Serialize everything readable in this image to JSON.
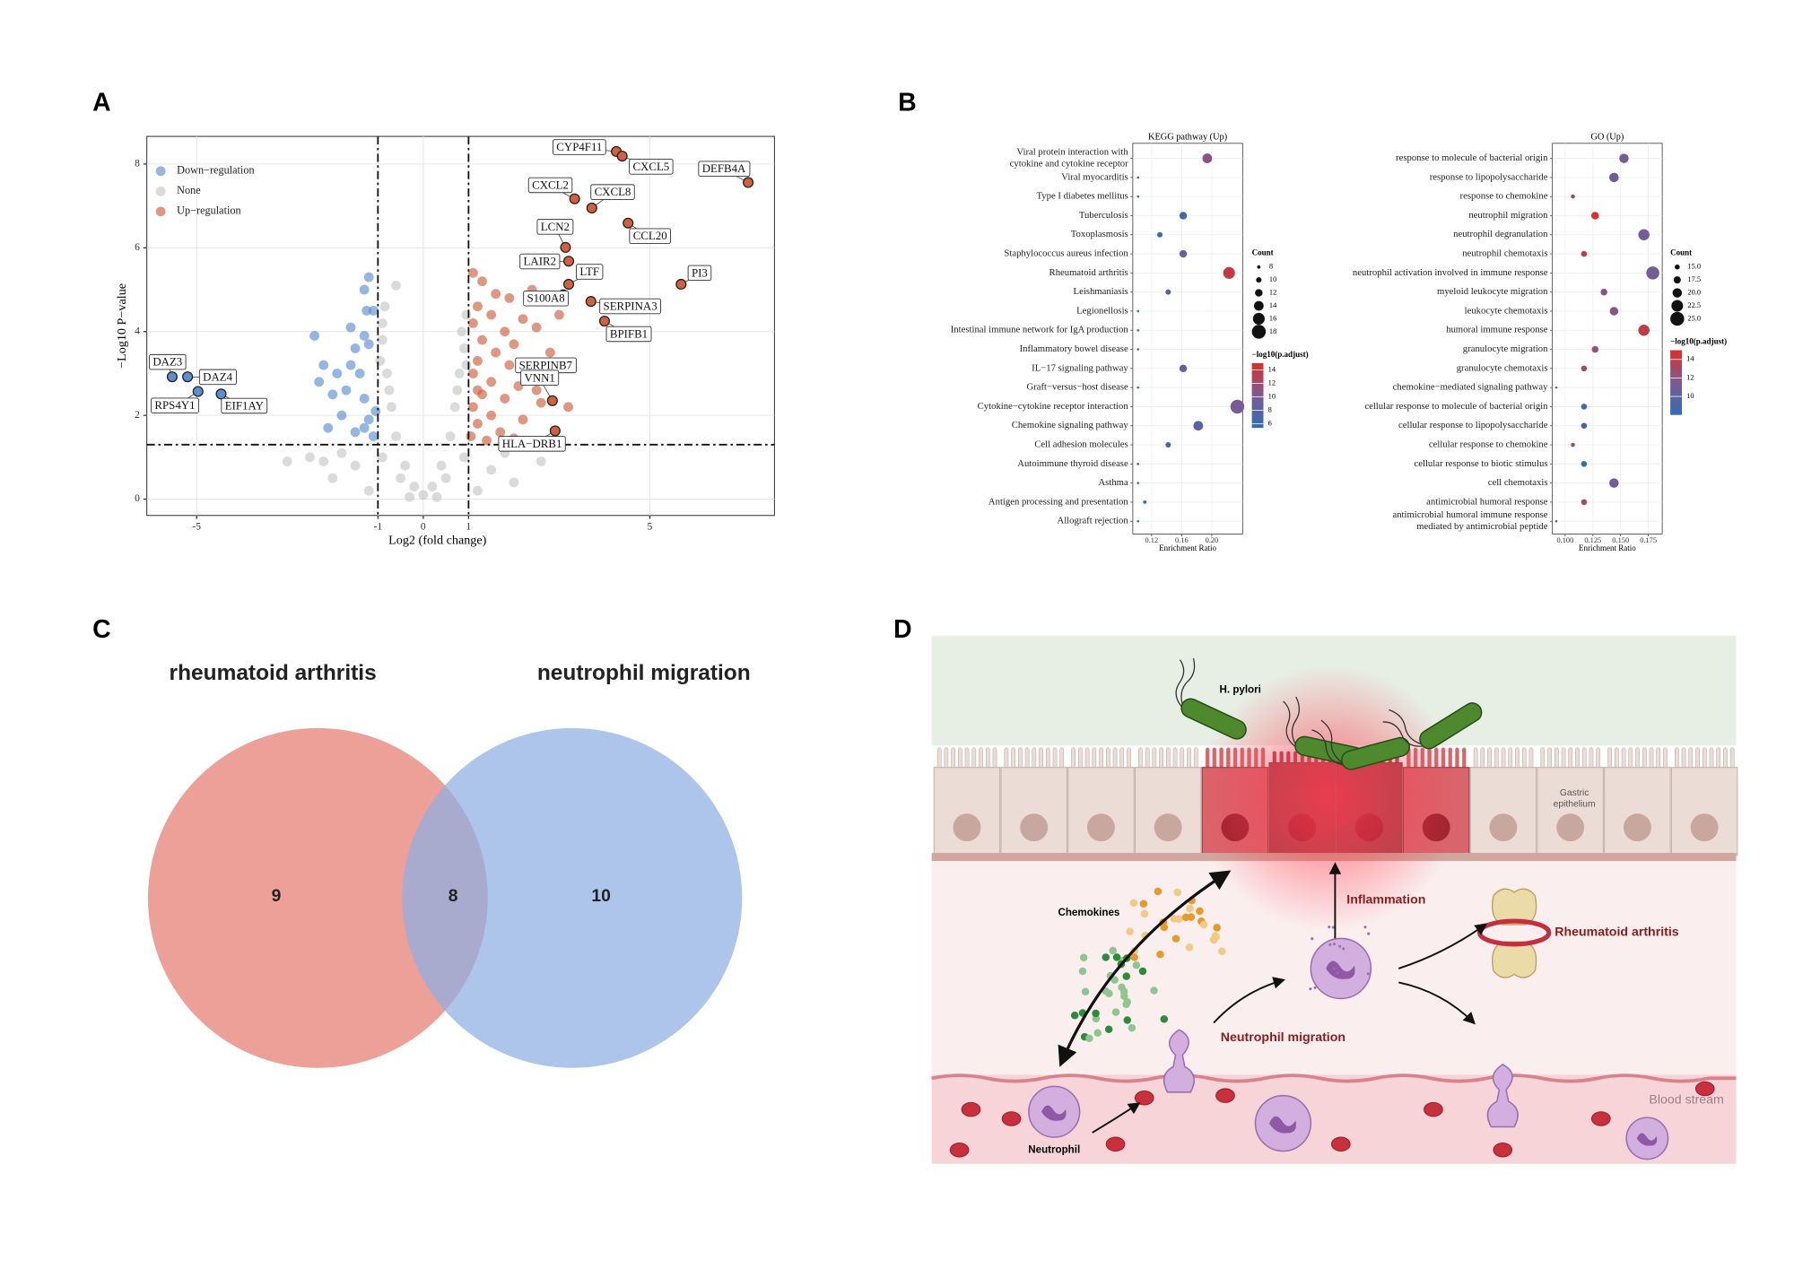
{
  "panel_labels": [
    "A",
    "B",
    "C",
    "D"
  ],
  "chart_data": [
    {
      "type": "scatter",
      "xlabel": "Log2 (fold change)",
      "ylabel": "−Log10 P−value",
      "xlim": [
        -6.1,
        7.75
      ],
      "ylim": [
        -0.39,
        8.66
      ],
      "xticks": [
        -5,
        -1,
        0,
        1,
        5
      ],
      "yticks": [
        0,
        2,
        4,
        6,
        8
      ],
      "grid": true,
      "legend": "top-left",
      "thresholds": {
        "x": [
          -1,
          1
        ],
        "y": 1.3
      },
      "series": [
        {
          "name": "Down−regulation",
          "color": "#5b8fd1",
          "x": [
            -1.2,
            -1.3,
            -1.25,
            -1.1,
            -2.4,
            -1.6,
            -1.3,
            -1.2,
            -1.5,
            -2.2,
            -1.9,
            -1.6,
            -1.4,
            -2.3,
            -2.0,
            -1.7,
            -1.3,
            -1.8,
            -1.2,
            -1.5,
            -1.1,
            -1.3,
            -2.1,
            -1.05
          ],
          "values": [
            5.3,
            5.0,
            4.5,
            4.5,
            3.9,
            4.1,
            3.9,
            3.7,
            3.6,
            3.2,
            3.0,
            3.2,
            3.0,
            2.8,
            2.5,
            2.6,
            2.4,
            2.0,
            1.9,
            1.6,
            1.5,
            1.7,
            1.7,
            2.1
          ]
        },
        {
          "name": "None",
          "color": "#c6c6c6",
          "x": [
            0,
            -0.2,
            0.2,
            -0.4,
            0.4,
            -0.6,
            0.6,
            -0.7,
            0.7,
            -0.8,
            0.8,
            -0.9,
            0.9,
            -0.85,
            0.95,
            -0.6,
            -0.5,
            0.5,
            -0.9,
            0.9,
            -1.5,
            1.5,
            -2.0,
            2.0,
            -2.5,
            2.6,
            -1.2,
            1.2,
            -0.3,
            0.3,
            -1.8,
            1.8,
            -0.75,
            0.75,
            -0.95,
            0.95,
            -3.0,
            -2.2,
            0.85,
            -0.9
          ],
          "values": [
            0.1,
            0.3,
            0.3,
            0.8,
            0.8,
            1.5,
            1.5,
            2.2,
            2.2,
            3.0,
            3.0,
            3.8,
            3.6,
            4.6,
            4.4,
            5.1,
            0.5,
            0.5,
            1.0,
            1.0,
            0.8,
            0.7,
            0.5,
            0.4,
            1.0,
            0.9,
            0.2,
            0.2,
            0.05,
            0.05,
            1.1,
            1.1,
            2.6,
            2.6,
            3.3,
            3.2,
            0.9,
            0.9,
            4.0,
            4.2
          ]
        },
        {
          "name": "Up−regulation",
          "color": "#d0603f",
          "x": [
            1.1,
            1.3,
            1.6,
            1.9,
            1.2,
            1.5,
            2.2,
            1.1,
            1.8,
            2.5,
            1.3,
            2.0,
            1.6,
            2.8,
            1.2,
            1.9,
            2.4,
            1.1,
            1.5,
            2.1,
            1.3,
            1.8,
            2.6,
            1.1,
            1.5,
            2.2,
            1.2,
            1.7,
            1.05,
            1.4,
            2.0,
            2.4,
            3.0,
            1.2,
            3.2,
            2.5
          ],
          "values": [
            5.4,
            5.2,
            4.9,
            4.8,
            4.6,
            4.4,
            4.3,
            4.2,
            4.0,
            4.1,
            3.8,
            3.7,
            3.5,
            3.5,
            3.3,
            3.2,
            3.0,
            3.0,
            2.8,
            2.7,
            2.5,
            2.4,
            2.3,
            2.2,
            2.0,
            1.9,
            1.8,
            1.6,
            1.5,
            1.4,
            1.45,
            5.0,
            4.4,
            2.6,
            2.2,
            2.6
          ]
        }
      ],
      "annotations": {
        "labels": [
          "CYP4F11",
          "CXCL5",
          "DEFB4A",
          "CXCL2",
          "CXCL8",
          "CCL20",
          "LCN2",
          "LAIR2",
          "LTF",
          "PI3",
          "S100A8",
          "SERPINA3",
          "BPIFB1",
          "SERPINB7",
          "VNN1",
          "HLA−DRB1",
          "DAZ3",
          "DAZ4",
          "RPS4Y1",
          "EIF1AY"
        ],
        "x": [
          4.26,
          4.39,
          7.17,
          3.34,
          3.72,
          4.52,
          3.14,
          3.21,
          3.21,
          5.69,
          3.09,
          3.7,
          4.0,
          3.16,
          2.85,
          2.91,
          -5.54,
          -5.2,
          -4.97,
          -4.46
        ],
        "values": [
          8.3,
          8.19,
          7.56,
          7.17,
          6.95,
          6.59,
          6.01,
          5.68,
          5.13,
          5.13,
          4.88,
          4.72,
          4.25,
          3.2,
          2.35,
          1.63,
          2.92,
          2.92,
          2.57,
          2.51
        ]
      }
    },
    {
      "type": "dot",
      "title": "KEGG pathway (Up)",
      "categories": [
        [
          "Viral protein interaction with",
          "cytokine and cytokine receptor"
        ],
        "Viral myocarditis",
        "Type I diabetes mellitus",
        "Tuberculosis",
        "Toxoplasmosis",
        "Staphylococcus aureus infection",
        "Rheumatoid arthritis",
        "Leishmaniasis",
        "Legionellosis",
        "Intestinal immune network for IgA production",
        "Inflammatory bowel disease",
        "IL−17 signaling pathway",
        "Graft−versus−host disease",
        "Cytokine−cytokine receptor interaction",
        "Chemokine signaling pathway",
        "Cell adhesion molecules",
        "Autoimmune thyroid disease",
        "Asthma",
        "Antigen processing and presentation",
        "Allograft rejection"
      ],
      "x": [
        0.194,
        0.102,
        0.102,
        0.162,
        0.131,
        0.162,
        0.223,
        0.142,
        0.102,
        0.102,
        0.102,
        0.162,
        0.102,
        0.234,
        0.182,
        0.142,
        0.102,
        0.102,
        0.111,
        0.102
      ],
      "counts": [
        14,
        7,
        7,
        12,
        10,
        12,
        16,
        10,
        7,
        7,
        7,
        12,
        7,
        18,
        14,
        10,
        7,
        7,
        8,
        7
      ],
      "padj": [
        11,
        6,
        6,
        6.5,
        6,
        9,
        14,
        8,
        6,
        6,
        6,
        9,
        6,
        10,
        8,
        6.5,
        6,
        6,
        6,
        6
      ],
      "xlabel": "Enrichment Ratio",
      "xlim": [
        0.095,
        0.241
      ],
      "xticks": [
        0.12,
        0.16,
        {
          "value": 0.2,
          "label": "0.20"
        }
      ],
      "grid": true,
      "size_label": "Count",
      "size_lim": [
        7,
        18
      ],
      "size_ticks": [
        8,
        10,
        12,
        14,
        16,
        18
      ],
      "color_label": "−log10(p.adjust)",
      "color_lim": [
        5.4,
        15
      ],
      "color_ticks": [
        6,
        8,
        10,
        12,
        14
      ],
      "colors": [
        "#2f6db5",
        "#7d5a93",
        "#d7302a"
      ]
    },
    {
      "type": "dot",
      "title": "GO (Up)",
      "categories": [
        "response to molecule of bacterial origin",
        "response to lipopolysaccharide",
        "response to chemokine",
        "neutrophil migration",
        "neutrophil degranulation",
        "neutrophil chemotaxis",
        "neutrophil activation involved in immune response",
        "myeloid leukocyte migration",
        "leukocyte chemotaxis",
        "humoral immune response",
        "granulocyte migration",
        "granulocyte chemotaxis",
        "chemokine−mediated signaling pathway",
        "cellular response to molecule of bacterial origin",
        "cellular response to lipopolysaccharide",
        "cellular response to chemokine",
        "cellular response to biotic stimulus",
        "cell chemotaxis",
        "antimicrobial humoral response",
        [
          "antimicrobial humoral immune response",
          "mediated by antimicrobial peptide"
        ]
      ],
      "x": [
        0.153,
        0.144,
        0.107,
        0.127,
        0.171,
        0.117,
        0.179,
        0.135,
        0.144,
        0.171,
        0.127,
        0.117,
        0.092,
        0.117,
        0.117,
        0.107,
        0.117,
        0.144,
        0.117,
        0.092
      ],
      "counts": [
        20,
        20,
        14,
        18,
        22,
        16,
        24,
        17,
        19,
        22,
        17,
        16,
        12,
        16,
        16,
        14,
        16,
        20,
        16,
        12
      ],
      "padj": [
        11,
        11,
        13,
        15,
        11,
        14,
        11,
        12,
        12,
        14,
        12,
        13,
        12,
        9,
        9,
        13,
        8,
        11,
        13,
        12
      ],
      "xlabel": "Enrichment Ratio",
      "xlim": [
        0.0885,
        0.1875
      ],
      "xticks": [
        {
          "value": 0.1,
          "label": "0.100"
        },
        0.125,
        {
          "value": 0.15,
          "label": "0.150"
        },
        0.175
      ],
      "grid": true,
      "size_label": "Count",
      "size_lim": [
        12,
        25
      ],
      "size_ticks": [
        {
          "value": 15,
          "label": "15.0"
        },
        17.5,
        {
          "value": 20,
          "label": "20.0"
        },
        22.5,
        {
          "value": 25,
          "label": "25.0"
        }
      ],
      "color_label": "−log10(p.adjust)",
      "color_lim": [
        8,
        15
      ],
      "color_ticks": [
        10,
        12,
        14
      ],
      "colors": [
        "#2f6db5",
        "#7d5a93",
        "#d7302a"
      ]
    },
    {
      "type": "venn",
      "sets": [
        "rheumatoid arthritis",
        "neutrophil migration"
      ],
      "values": [
        9,
        8,
        10
      ],
      "colors": [
        "#e8857a",
        "#8eaee2"
      ]
    }
  ],
  "diagram": {
    "bacteria": "H. pylori",
    "epithelium": [
      "Gastric",
      "epithelium"
    ],
    "chemokines": "Chemokines",
    "inflammation": "Inflammation",
    "disease": "Rheumatoid arthritis",
    "migration": "Neutrophil migration",
    "neutrophil": "Neutrophil",
    "blood": "Blood stream"
  }
}
